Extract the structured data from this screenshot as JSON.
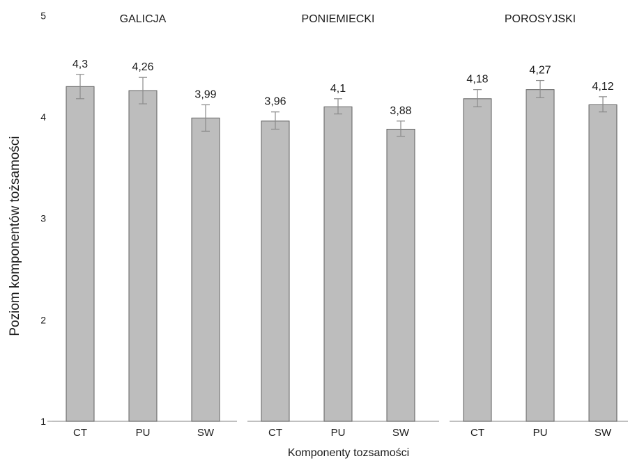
{
  "chart_data": {
    "type": "bar",
    "ylabel": "Poziom komponentów tożsamości",
    "xlabel": "Komponenty tozsamości",
    "ylim": [
      1,
      5
    ],
    "yticks": [
      1,
      2,
      3,
      4,
      5
    ],
    "grid": false,
    "bar_color": "#bdbdbd",
    "bar_edge_color": "#5f5f5f",
    "errorbar_color": "#8a8a8a",
    "panels": [
      {
        "name": "GALICJA",
        "categories": [
          "CT",
          "PU",
          "SW"
        ],
        "values": [
          4.3,
          4.26,
          3.99
        ],
        "value_labels": [
          "4,3",
          "4,26",
          "3,99"
        ],
        "error_low": [
          4.18,
          4.13,
          3.86
        ],
        "error_high": [
          4.42,
          4.39,
          4.12
        ]
      },
      {
        "name": "PONIEMIECKI",
        "categories": [
          "CT",
          "PU",
          "SW"
        ],
        "values": [
          3.96,
          4.1,
          3.88
        ],
        "value_labels": [
          "3,96",
          "4,1",
          "3,88"
        ],
        "error_low": [
          3.88,
          4.03,
          3.81
        ],
        "error_high": [
          4.05,
          4.18,
          3.96
        ]
      },
      {
        "name": "POROSYJSKI",
        "categories": [
          "CT",
          "PU",
          "SW"
        ],
        "values": [
          4.18,
          4.27,
          4.12
        ],
        "value_labels": [
          "4,18",
          "4,27",
          "4,12"
        ],
        "error_low": [
          4.1,
          4.19,
          4.05
        ],
        "error_high": [
          4.27,
          4.36,
          4.2
        ]
      }
    ]
  }
}
